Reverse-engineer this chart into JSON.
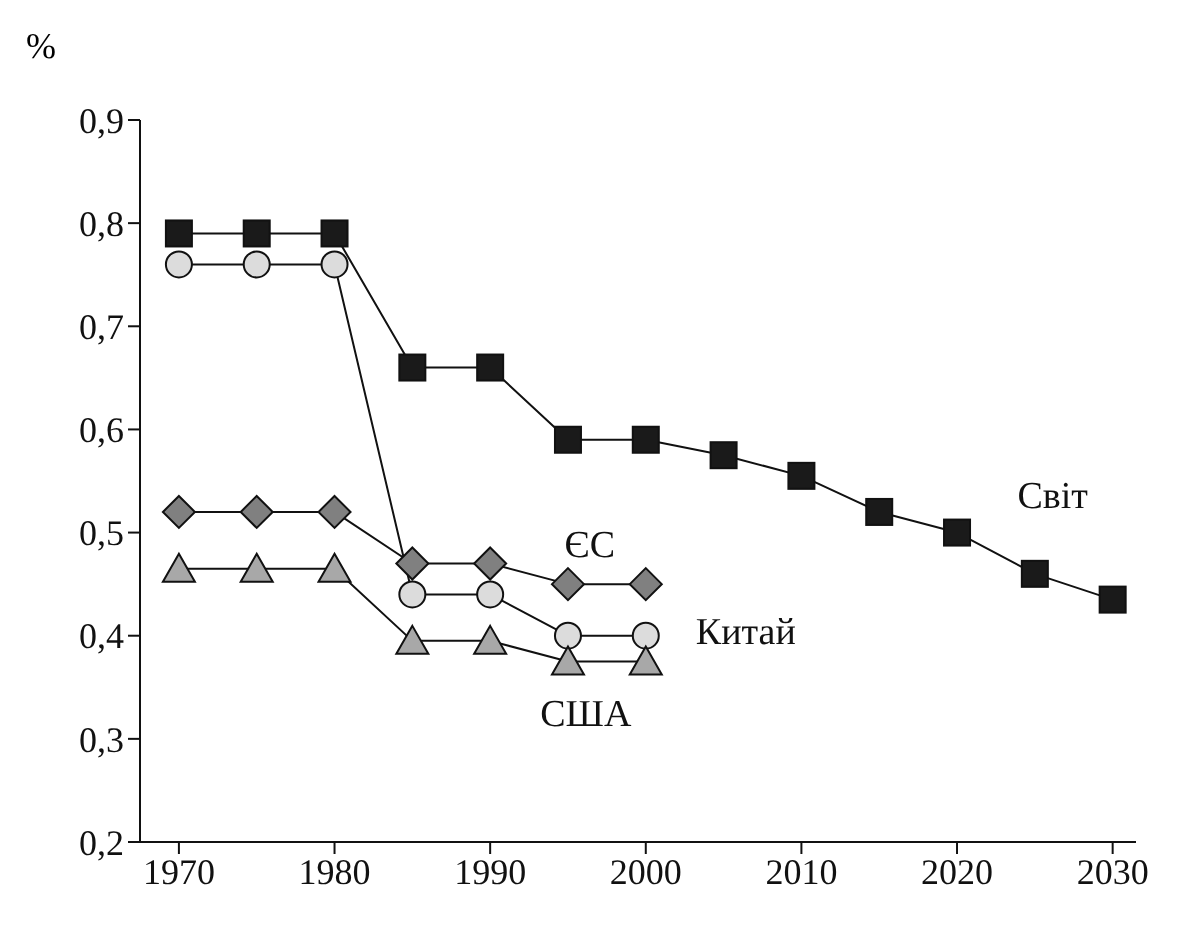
{
  "chart_data": {
    "type": "line",
    "ylabel": "%",
    "xlim": [
      1967.5,
      2031.5
    ],
    "xticks": [
      1970,
      1980,
      1990,
      2000,
      2010,
      2020,
      2030
    ],
    "ylim": [
      0.2,
      0.9
    ],
    "yticks": [
      {
        "value": 0.2,
        "label": "0,2"
      },
      {
        "value": 0.3,
        "label": "0,3"
      },
      {
        "value": 0.4,
        "label": "0,4"
      },
      {
        "value": 0.5,
        "label": "0,5"
      },
      {
        "value": 0.6,
        "label": "0,6"
      },
      {
        "value": 0.7,
        "label": "0,7"
      },
      {
        "value": 0.8,
        "label": "0,8"
      },
      {
        "value": 0.9,
        "label": "0,9"
      }
    ],
    "grid": false,
    "legend": false,
    "series": [
      {
        "name": "Світ",
        "color": "#1a1a1a",
        "marker": "square",
        "x": [
          1970,
          1975,
          1980,
          1985,
          1990,
          1995,
          2000,
          2005,
          2010,
          2015,
          2020,
          2025,
          2030
        ],
        "values": [
          0.79,
          0.79,
          0.79,
          0.66,
          0.66,
          0.59,
          0.59,
          0.575,
          0.555,
          0.52,
          0.5,
          0.46,
          0.435
        ]
      },
      {
        "name": "Китай",
        "color": "#dcdcdc",
        "marker": "circle",
        "x": [
          1970,
          1975,
          1980,
          1985,
          1990,
          1995,
          2000
        ],
        "values": [
          0.76,
          0.76,
          0.76,
          0.44,
          0.44,
          0.4,
          0.4
        ]
      },
      {
        "name": "ЄС",
        "color": "#808080",
        "marker": "diamond",
        "x": [
          1970,
          1975,
          1980,
          1985,
          1990,
          1995,
          2000
        ],
        "values": [
          0.52,
          0.52,
          0.52,
          0.47,
          0.47,
          0.45,
          0.45
        ]
      },
      {
        "name": "США",
        "color": "#a8a8a8",
        "marker": "triangle",
        "x": [
          1970,
          1975,
          1980,
          1985,
          1990,
          1995,
          2000
        ],
        "values": [
          0.465,
          0.465,
          0.465,
          0.395,
          0.395,
          0.375,
          0.375
        ]
      }
    ]
  }
}
